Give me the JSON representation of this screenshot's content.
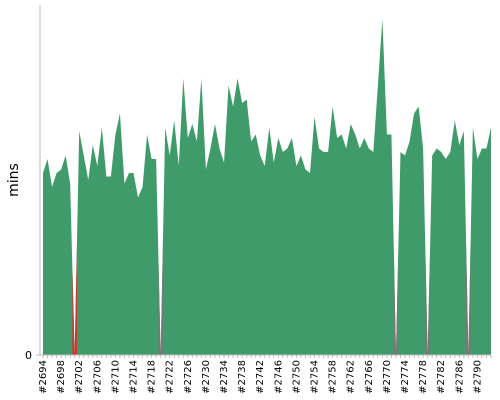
{
  "chart_data": {
    "type": "area",
    "y_label": "mins",
    "categories": [
      "#2694",
      null,
      null,
      null,
      "#2698",
      null,
      null,
      null,
      "#2702",
      null,
      null,
      null,
      "#2706",
      null,
      null,
      null,
      "#2710",
      null,
      null,
      null,
      "#2714",
      null,
      null,
      null,
      "#2718",
      null,
      null,
      null,
      "#2722",
      null,
      null,
      null,
      "#2726",
      null,
      null,
      null,
      "#2730",
      null,
      null,
      null,
      "#2734",
      null,
      null,
      null,
      "#2738",
      null,
      null,
      null,
      "#2742",
      null,
      null,
      null,
      "#2746",
      null,
      null,
      null,
      "#2750",
      null,
      null,
      null,
      "#2754",
      null,
      null,
      null,
      "#2758",
      null,
      null,
      null,
      "#2762",
      null,
      null,
      null,
      "#2766",
      null,
      null,
      null,
      "#2770",
      null,
      null,
      null,
      "#2774",
      null,
      null,
      null,
      "#2778",
      null,
      null,
      null,
      "#2782",
      null,
      null,
      null,
      "#2786",
      null,
      null,
      null,
      "#2790",
      null,
      null,
      null
    ],
    "values": [
      52,
      56,
      48,
      52,
      53,
      57,
      49,
      0,
      64,
      57,
      50,
      60,
      54,
      65,
      51,
      51,
      63,
      69,
      49,
      52,
      52,
      45,
      48,
      63,
      56,
      56,
      0,
      65,
      57,
      67,
      54,
      79,
      62,
      66,
      61,
      79,
      53,
      59,
      66,
      59,
      55,
      77,
      71,
      79,
      72,
      73,
      61,
      63,
      57,
      54,
      65,
      55,
      62,
      58,
      59,
      62,
      54,
      57,
      53,
      52,
      68,
      59,
      58,
      58,
      71,
      62,
      63,
      59,
      66,
      63,
      59,
      62,
      59,
      58,
      77,
      96,
      63,
      63,
      0,
      58,
      57,
      61,
      69,
      71,
      59,
      0,
      57,
      59,
      58,
      56,
      58,
      67,
      60,
      64,
      0,
      65,
      56,
      59,
      59,
      65
    ],
    "color": "#3f9c6a",
    "point_colors": [
      "#3f9c6a",
      "#3f9c6a",
      "#3f9c6a",
      "#3f9c6a",
      "#3f9c6a",
      "#3f9c6a",
      "#3f9c6a",
      "#d9302c",
      "#3f9c6a",
      "#3f9c6a",
      "#3f9c6a",
      "#3f9c6a",
      "#3f9c6a",
      "#3f9c6a",
      "#3f9c6a",
      "#3f9c6a",
      "#3f9c6a",
      "#3f9c6a",
      "#3f9c6a",
      "#3f9c6a",
      "#3f9c6a",
      "#3f9c6a",
      "#3f9c6a",
      "#3f9c6a",
      "#3f9c6a",
      "#3f9c6a",
      "#777777",
      "#3f9c6a",
      "#3f9c6a",
      "#3f9c6a",
      "#3f9c6a",
      "#3f9c6a",
      "#3f9c6a",
      "#3f9c6a",
      "#3f9c6a",
      "#3f9c6a",
      "#3f9c6a",
      "#3f9c6a",
      "#3f9c6a",
      "#3f9c6a",
      "#3f9c6a",
      "#3f9c6a",
      "#3f9c6a",
      "#3f9c6a",
      "#3f9c6a",
      "#3f9c6a",
      "#3f9c6a",
      "#3f9c6a",
      "#3f9c6a",
      "#3f9c6a",
      "#3f9c6a",
      "#3f9c6a",
      "#3f9c6a",
      "#3f9c6a",
      "#3f9c6a",
      "#3f9c6a",
      "#3f9c6a",
      "#3f9c6a",
      "#3f9c6a",
      "#3f9c6a",
      "#3f9c6a",
      "#3f9c6a",
      "#3f9c6a",
      "#3f9c6a",
      "#3f9c6a",
      "#3f9c6a",
      "#3f9c6a",
      "#3f9c6a",
      "#3f9c6a",
      "#3f9c6a",
      "#3f9c6a",
      "#3f9c6a",
      "#3f9c6a",
      "#3f9c6a",
      "#3f9c6a",
      "#3f9c6a",
      "#3f9c6a",
      "#3f9c6a",
      "#777777",
      "#3f9c6a",
      "#3f9c6a",
      "#3f9c6a",
      "#3f9c6a",
      "#3f9c6a",
      "#3f9c6a",
      "#777777",
      "#3f9c6a",
      "#3f9c6a",
      "#3f9c6a",
      "#3f9c6a",
      "#3f9c6a",
      "#3f9c6a",
      "#3f9c6a",
      "#3f9c6a",
      "#777777",
      "#3f9c6a",
      "#3f9c6a",
      "#3f9c6a",
      "#3f9c6a",
      "#3f9c6a"
    ],
    "ylim": [
      0,
      100
    ],
    "yticks": [
      0
    ]
  }
}
